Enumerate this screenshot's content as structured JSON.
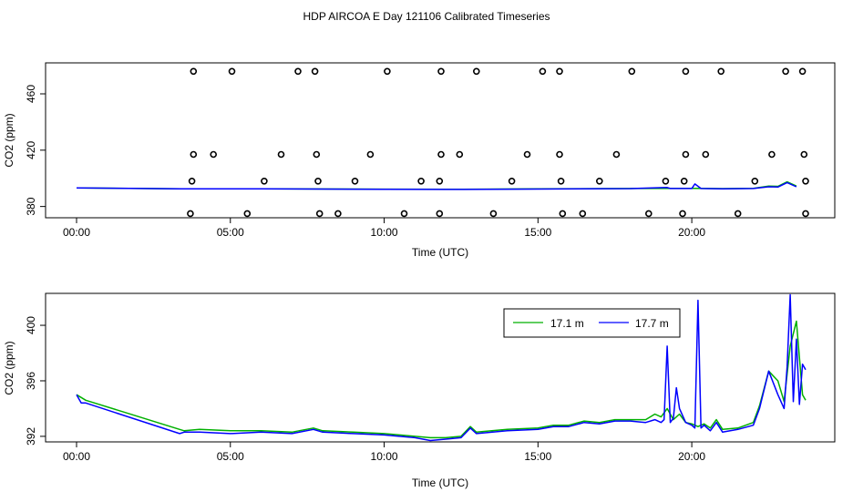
{
  "title": "HDP AIRCOA E  Day 121106  Calibrated Timeseries",
  "colors": {
    "series_17_1": "#00b000",
    "series_17_7": "#0000ff",
    "axis": "#000000",
    "background": "#ffffff"
  },
  "chart_data": [
    {
      "type": "scatter+line",
      "xlabel": "Time (UTC)",
      "ylabel": "CO2 (ppm)",
      "xlim": [
        0,
        24.5
      ],
      "ylim": [
        372,
        482
      ],
      "xticks": [
        {
          "v": 0,
          "label": "00:00"
        },
        {
          "v": 5,
          "label": "05:00"
        },
        {
          "v": 10,
          "label": "10:00"
        },
        {
          "v": 15,
          "label": "15:00"
        },
        {
          "v": 20,
          "label": "20:00"
        }
      ],
      "yticks": [
        {
          "v": 380,
          "label": "380"
        },
        {
          "v": 420,
          "label": "420"
        },
        {
          "v": 460,
          "label": "460"
        }
      ],
      "grid": false,
      "calibration_points": [
        [
          3.8,
          476
        ],
        [
          5.05,
          476
        ],
        [
          7.2,
          476
        ],
        [
          7.75,
          476
        ],
        [
          10.1,
          476
        ],
        [
          11.85,
          476
        ],
        [
          13.0,
          476
        ],
        [
          15.15,
          476
        ],
        [
          15.7,
          476
        ],
        [
          18.05,
          476
        ],
        [
          19.8,
          476
        ],
        [
          20.95,
          476
        ],
        [
          23.05,
          476
        ],
        [
          23.6,
          476
        ],
        [
          3.8,
          417
        ],
        [
          4.45,
          417
        ],
        [
          6.65,
          417
        ],
        [
          7.8,
          417
        ],
        [
          9.55,
          417
        ],
        [
          11.85,
          417
        ],
        [
          12.45,
          417
        ],
        [
          14.65,
          417
        ],
        [
          15.7,
          417
        ],
        [
          17.55,
          417
        ],
        [
          19.8,
          417
        ],
        [
          20.45,
          417
        ],
        [
          22.6,
          417
        ],
        [
          23.65,
          417
        ],
        [
          3.75,
          398
        ],
        [
          6.1,
          398
        ],
        [
          7.85,
          398
        ],
        [
          9.05,
          398
        ],
        [
          11.2,
          398
        ],
        [
          11.8,
          398
        ],
        [
          14.15,
          398
        ],
        [
          15.75,
          398
        ],
        [
          17.0,
          398
        ],
        [
          19.15,
          398
        ],
        [
          19.75,
          398
        ],
        [
          22.05,
          398
        ],
        [
          23.7,
          398
        ],
        [
          3.7,
          375
        ],
        [
          5.55,
          375
        ],
        [
          7.9,
          375
        ],
        [
          8.5,
          375
        ],
        [
          10.65,
          375
        ],
        [
          11.8,
          375
        ],
        [
          13.55,
          375
        ],
        [
          15.8,
          375
        ],
        [
          16.45,
          375
        ],
        [
          18.6,
          375
        ],
        [
          19.7,
          375
        ],
        [
          21.5,
          375
        ],
        [
          23.7,
          375
        ]
      ],
      "series": [
        {
          "name": "17.1 m",
          "color": "#00b000",
          "x": [
            0,
            3.4,
            6,
            10,
            12,
            15,
            18,
            20,
            21,
            22,
            22.5,
            22.8,
            23.1,
            23.4
          ],
          "values": [
            393.2,
            392.6,
            392.6,
            392.3,
            392.2,
            392.5,
            392.8,
            392.9,
            392.7,
            392.9,
            394.5,
            394.3,
            397.5,
            394.5
          ]
        },
        {
          "name": "17.7 m",
          "color": "#0000ff",
          "x": [
            0,
            3.4,
            6,
            10,
            12,
            15,
            18,
            19.2,
            19.3,
            20,
            20.1,
            20.3,
            21,
            22,
            22.5,
            22.8,
            23.1,
            23.4
          ],
          "values": [
            393.2,
            392.6,
            392.5,
            392.2,
            392.1,
            392.4,
            392.7,
            393.5,
            392.8,
            392.8,
            396.0,
            392.8,
            392.6,
            392.8,
            394.0,
            393.8,
            397.0,
            394.0
          ]
        }
      ]
    },
    {
      "type": "line",
      "xlabel": "Time (UTC)",
      "ylabel": "CO2 (ppm)",
      "xlim": [
        -0.2,
        24.5
      ],
      "ylim": [
        391.6,
        402.3
      ],
      "xticks": [
        {
          "v": 0,
          "label": "00:00"
        },
        {
          "v": 5,
          "label": "05:00"
        },
        {
          "v": 10,
          "label": "10:00"
        },
        {
          "v": 15,
          "label": "15:00"
        },
        {
          "v": 20,
          "label": "20:00"
        }
      ],
      "yticks": [
        {
          "v": 392,
          "label": "392"
        },
        {
          "v": 396,
          "label": "396"
        },
        {
          "v": 400,
          "label": "400"
        }
      ],
      "grid": false,
      "legend_position": "top-right",
      "series": [
        {
          "name": "17.1 m",
          "color": "#00b000",
          "x": [
            0,
            0.3,
            3.35,
            3.5,
            4,
            5,
            6,
            7,
            7.7,
            8,
            9,
            10,
            11,
            11.5,
            12,
            12.5,
            12.8,
            13,
            14,
            15,
            15.5,
            16,
            16.5,
            17,
            17.5,
            18,
            18.5,
            18.8,
            19,
            19.2,
            19.4,
            19.6,
            19.8,
            20,
            20.2,
            20.4,
            20.6,
            20.8,
            21,
            21.5,
            22,
            22.2,
            22.5,
            22.8,
            23,
            23.2,
            23.4,
            23.6,
            23.7
          ],
          "values": [
            395.0,
            394.6,
            392.5,
            392.4,
            392.5,
            392.4,
            392.4,
            392.3,
            392.6,
            392.4,
            392.3,
            392.2,
            392.0,
            391.9,
            391.9,
            392.0,
            392.7,
            392.3,
            392.5,
            392.6,
            392.8,
            392.8,
            393.1,
            393.0,
            393.2,
            393.2,
            393.2,
            393.6,
            393.4,
            394.0,
            393.2,
            393.6,
            393.0,
            392.9,
            392.7,
            392.9,
            392.6,
            393.2,
            392.5,
            392.6,
            393.0,
            394.2,
            396.7,
            396.0,
            394.5,
            398.5,
            400.3,
            395.0,
            394.6
          ]
        },
        {
          "name": "17.7 m",
          "color": "#0000ff",
          "x": [
            0,
            0.15,
            0.3,
            3.35,
            3.5,
            4,
            5,
            6,
            7,
            7.7,
            8,
            9,
            10,
            11,
            11.5,
            12,
            12.5,
            12.8,
            13,
            14,
            15,
            15.5,
            16,
            16.5,
            17,
            17.5,
            18,
            18.5,
            18.8,
            19,
            19.1,
            19.2,
            19.3,
            19.4,
            19.5,
            19.6,
            19.8,
            20,
            20.1,
            20.2,
            20.3,
            20.4,
            20.6,
            20.8,
            21,
            21.5,
            22,
            22.2,
            22.5,
            22.8,
            23,
            23.1,
            23.2,
            23.3,
            23.4,
            23.5,
            23.6,
            23.7
          ],
          "values": [
            395.0,
            394.4,
            394.4,
            392.2,
            392.3,
            392.3,
            392.2,
            392.3,
            392.2,
            392.5,
            392.3,
            392.2,
            392.1,
            391.9,
            391.7,
            391.8,
            391.9,
            392.6,
            392.2,
            392.4,
            392.5,
            392.7,
            392.7,
            393.0,
            392.9,
            393.1,
            393.1,
            393.0,
            393.2,
            393.0,
            393.2,
            398.5,
            393.0,
            393.3,
            395.5,
            394.0,
            393.0,
            392.8,
            392.6,
            401.8,
            392.6,
            392.8,
            392.4,
            393.0,
            392.3,
            392.5,
            392.8,
            394.0,
            396.7,
            395.0,
            394.0,
            397.0,
            402.2,
            394.5,
            399.0,
            394.3,
            397.2,
            396.8
          ]
        }
      ]
    }
  ]
}
